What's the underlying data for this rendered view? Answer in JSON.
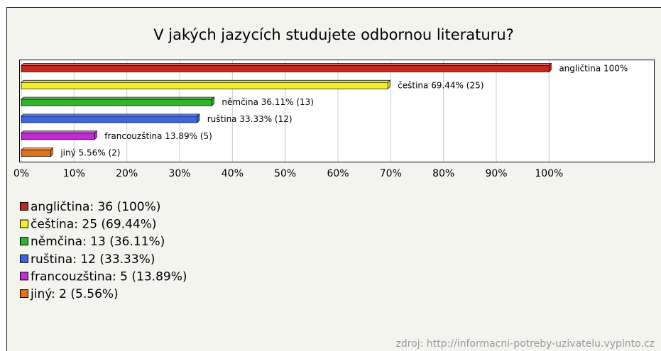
{
  "chart_data": {
    "type": "bar",
    "orientation": "horizontal",
    "title": "V jakých jazycích studujete odbornou literaturu?",
    "categories": [
      "angličtina",
      "čeština",
      "němčina",
      "ruština",
      "francouzština",
      "jiný"
    ],
    "values": [
      100,
      69.44,
      36.11,
      33.33,
      13.89,
      5.56
    ],
    "value_labels": [
      "angličtina 100%",
      "čeština 69.44% (25)",
      "němčina 36.11% (13)",
      "ruština 33.33% (12)",
      "francouzština 13.89% (5)",
      "jiný 5.56% (2)"
    ],
    "legend_labels": [
      "angličtina: 36 (100%)",
      "čeština: 25 (69.44%)",
      "němčina: 13 (36.11%)",
      "ruština: 12 (33.33%)",
      "francouzština: 5 (13.89%)",
      "jiný: 2 (5.56%)"
    ],
    "colors": [
      "#c4261c",
      "#f2ee2a",
      "#2fb42c",
      "#3a66e6",
      "#c42ad8",
      "#e0721a"
    ],
    "xlim": [
      0,
      120
    ],
    "xticks": [
      {
        "value": 0,
        "label": "0%"
      },
      {
        "value": 10,
        "label": "10%"
      },
      {
        "value": 20,
        "label": "20%"
      },
      {
        "value": 30,
        "label": "30%"
      },
      {
        "value": 40,
        "label": "40%"
      },
      {
        "value": 50,
        "label": "50%"
      },
      {
        "value": 60,
        "label": "60%"
      },
      {
        "value": 70,
        "label": "70%"
      },
      {
        "value": 80,
        "label": "80%"
      },
      {
        "value": 90,
        "label": "90%"
      },
      {
        "value": 100,
        "label": "100%"
      }
    ],
    "grid": true,
    "source": "zdroj: http://informacni-potreby-uzivatelu.vyplnto.cz"
  }
}
